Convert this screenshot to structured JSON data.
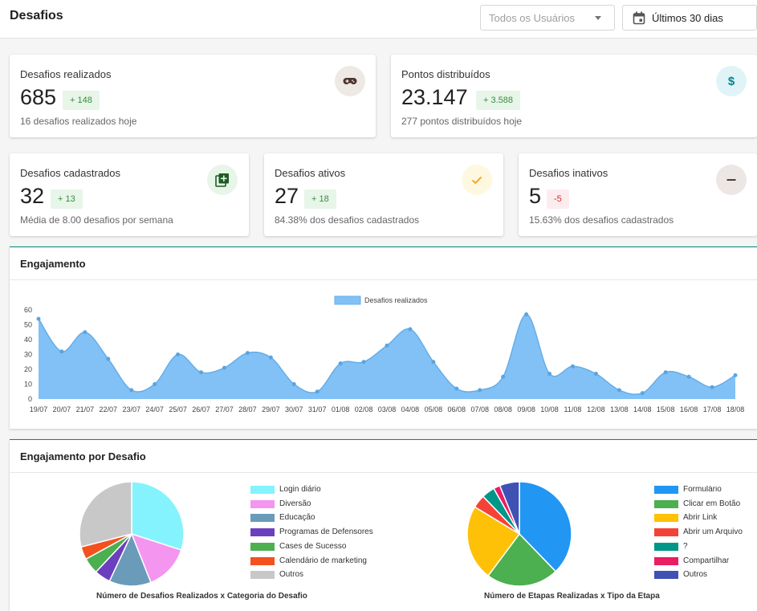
{
  "header": {
    "title": "Desafios",
    "user_select": "Todos os Usuários",
    "date_range": "Últimos 30 dias"
  },
  "stats": {
    "realizados": {
      "label": "Desafios realizados",
      "value": "685",
      "delta": "+ 148",
      "sub": "16 desafios realizados hoje"
    },
    "pontos": {
      "label": "Pontos distribuídos",
      "value": "23.147",
      "delta": "+ 3.588",
      "sub": "277 pontos distribuídos hoje"
    },
    "cadastrados": {
      "label": "Desafios cadastrados",
      "value": "32",
      "delta": "+ 13",
      "sub": "Média de 8.00 desafios por semana"
    },
    "ativos": {
      "label": "Desafios ativos",
      "value": "27",
      "delta": "+ 18",
      "sub": "84.38% dos desafios cadastrados"
    },
    "inativos": {
      "label": "Desafios inativos",
      "value": "5",
      "delta": "-5",
      "sub": "15.63% dos desafios cadastrados"
    }
  },
  "engajamento": {
    "title": "Engajamento"
  },
  "por_desafio": {
    "title": "Engajamento por Desafio"
  },
  "chart_data": [
    {
      "type": "area",
      "x": [
        "19/07",
        "20/07",
        "21/07",
        "22/07",
        "23/07",
        "24/07",
        "25/07",
        "26/07",
        "27/07",
        "28/07",
        "29/07",
        "30/07",
        "31/07",
        "01/08",
        "02/08",
        "03/08",
        "04/08",
        "05/08",
        "06/08",
        "07/08",
        "08/08",
        "09/08",
        "10/08",
        "11/08",
        "12/08",
        "13/08",
        "14/08",
        "15/08",
        "16/08",
        "17/08",
        "18/08"
      ],
      "series": [
        {
          "name": "Desafios realizados",
          "values": [
            54,
            32,
            45,
            27,
            6,
            10,
            30,
            18,
            21,
            31,
            28,
            10,
            5,
            24,
            25,
            36,
            47,
            25,
            7,
            6,
            15,
            57,
            17,
            22,
            17,
            6,
            4,
            18,
            15,
            8,
            16
          ]
        }
      ],
      "yticks": [
        0,
        10,
        20,
        30,
        40,
        50,
        60
      ],
      "ylim": [
        0,
        60
      ],
      "legend": "top",
      "color": "#82c1f6"
    },
    {
      "type": "pie",
      "title": "Número de Desafios Realizados x Categoria do Desafio",
      "labels": [
        "Login diário",
        "Diversão",
        "Educação",
        "Programas de Defensores",
        "Cases de Sucesso",
        "Calendário de marketing",
        "Outros"
      ],
      "values": [
        30,
        14,
        13,
        5,
        5,
        4,
        29
      ],
      "colors": [
        "#84f3fd",
        "#f495f0",
        "#6a9bb9",
        "#6c3fbe",
        "#4caf50",
        "#f4511e",
        "#c8c8c8"
      ]
    },
    {
      "type": "pie",
      "title": "Número de Etapas Realizadas x Tipo da Etapa",
      "labels": [
        "Formulário",
        "Clicar em Botão",
        "Abrir Link",
        "Abrir um Arquivo",
        "?",
        "Compartilhar",
        "Outros"
      ],
      "values": [
        37,
        22,
        23,
        4,
        4,
        2,
        6
      ],
      "colors": [
        "#2196f3",
        "#4caf50",
        "#ffc107",
        "#f44336",
        "#009688",
        "#e91e63",
        "#3f51b5"
      ]
    }
  ]
}
